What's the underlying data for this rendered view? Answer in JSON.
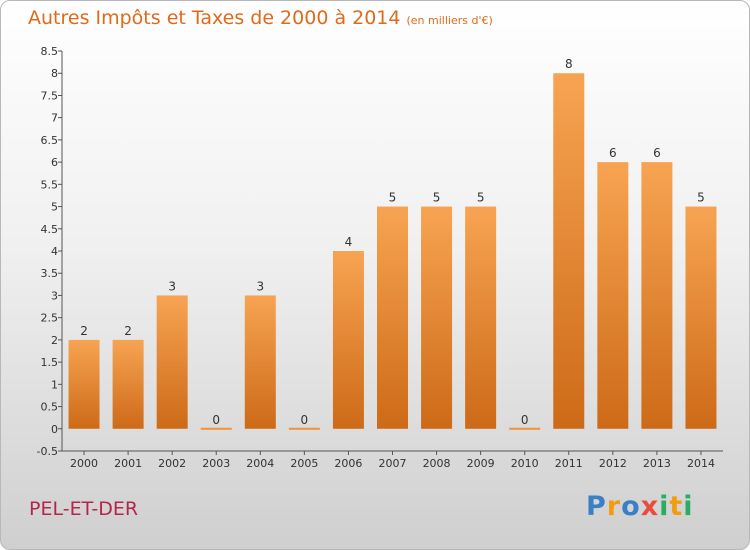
{
  "chart_data": {
    "type": "bar",
    "title": "Autres Impôts et Taxes de 2000 à 2014",
    "subtitle": "(en milliers d'€)",
    "categories": [
      "2000",
      "2001",
      "2002",
      "2003",
      "2004",
      "2005",
      "2006",
      "2007",
      "2008",
      "2009",
      "2010",
      "2011",
      "2012",
      "2013",
      "2014"
    ],
    "values": [
      2,
      2,
      3,
      0,
      3,
      0,
      4,
      5,
      5,
      5,
      0,
      8,
      6,
      6,
      5
    ],
    "yticks": [
      "8.5",
      "8",
      "7.5",
      "7",
      "6.5",
      "6",
      "5.5",
      "5",
      "4.5",
      "4",
      "3.5",
      "3",
      "2.5",
      "2",
      "1.5",
      "1",
      "0.5",
      "0",
      "-0.5"
    ],
    "ylim": [
      -0.5,
      8.5
    ],
    "grid": false,
    "bar_color": "#f0923a"
  },
  "commune": "PEL-ET-DER",
  "logo": {
    "letters": [
      "P",
      "r",
      "o",
      "x",
      "i",
      "t",
      "i"
    ],
    "colors": [
      "#3b7fc4",
      "#f39c12",
      "#3b7fc4",
      "#e74c3c",
      "#27ae60",
      "#f39c12",
      "#27ae60"
    ]
  }
}
